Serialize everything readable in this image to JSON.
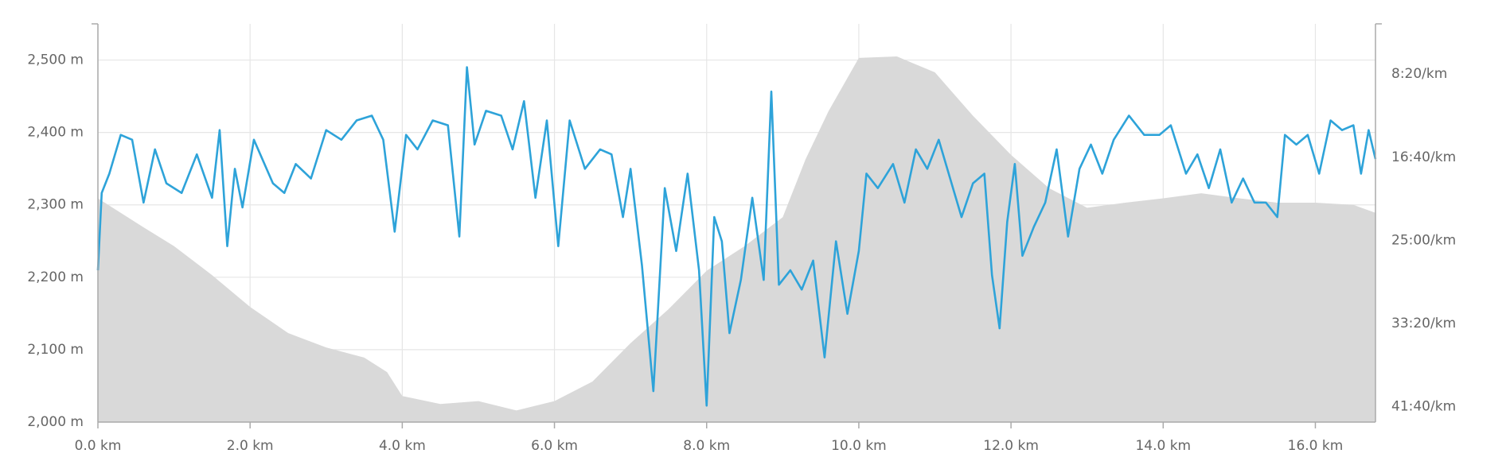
{
  "chart_data": {
    "type": "line",
    "xlim": [
      0,
      16.79
    ],
    "xticks": [
      {
        "value": 0,
        "label": "0.0 km"
      },
      {
        "value": 2,
        "label": "2.0 km"
      },
      {
        "value": 4,
        "label": "4.0 km"
      },
      {
        "value": 6,
        "label": "6.0 km"
      },
      {
        "value": 8,
        "label": "8.0 km"
      },
      {
        "value": 10,
        "label": "10.0 km"
      },
      {
        "value": 12,
        "label": "12.0 km"
      },
      {
        "value": 14,
        "label": "14.0 km"
      },
      {
        "value": 16,
        "label": "16.0 km"
      }
    ],
    "ylim": [
      2000,
      2550
    ],
    "yticks": [
      {
        "value": 2000,
        "label": "2,000 m"
      },
      {
        "value": 2100,
        "label": "2,100 m"
      },
      {
        "value": 2200,
        "label": "2,200 m"
      },
      {
        "value": 2300,
        "label": "2,300 m"
      },
      {
        "value": 2400,
        "label": "2,400 m"
      },
      {
        "value": 2500,
        "label": "2,500 m"
      }
    ],
    "y2lim": [
      2593,
      198
    ],
    "y2ticks": [
      {
        "value": 500,
        "label": "8:20/km"
      },
      {
        "value": 1000,
        "label": "16:40/km"
      },
      {
        "value": 1500,
        "label": "25:00/km"
      },
      {
        "value": 2000,
        "label": "33:20/km"
      },
      {
        "value": 2500,
        "label": "41:40/km"
      }
    ],
    "grid": true,
    "series": [
      {
        "type": "area",
        "color": "#d9d9d9",
        "x": [
          0,
          0.3,
          0.6,
          1.0,
          1.5,
          2.0,
          2.5,
          3.0,
          3.5,
          3.8,
          4.0,
          4.5,
          5.0,
          5.5,
          6.0,
          6.5,
          7.0,
          7.5,
          8.0,
          8.5,
          9.0,
          9.3,
          9.6,
          10.0,
          10.5,
          11.0,
          11.5,
          12.0,
          12.5,
          13.0,
          13.5,
          14.0,
          14.5,
          15.0,
          15.5,
          16.0,
          16.5,
          16.79
        ],
        "values": [
          2309,
          2289,
          2269,
          2243,
          2203,
          2159,
          2123,
          2103,
          2089,
          2069,
          2036,
          2025,
          2029,
          2016,
          2029,
          2056,
          2109,
          2156,
          2209,
          2243,
          2283,
          2363,
          2429,
          2503,
          2505,
          2483,
          2423,
          2369,
          2323,
          2296,
          2303,
          2309,
          2316,
          2309,
          2303,
          2303,
          2300,
          2289
        ]
      },
      {
        "type": "line",
        "axis": "y2",
        "color": "#2ea3d9",
        "x": [
          0,
          0.05,
          0.15,
          0.3,
          0.45,
          0.6,
          0.75,
          0.9,
          1.1,
          1.3,
          1.5,
          1.6,
          1.7,
          1.8,
          1.9,
          2.05,
          2.3,
          2.45,
          2.6,
          2.8,
          3.0,
          3.2,
          3.4,
          3.6,
          3.75,
          3.9,
          4.05,
          4.2,
          4.4,
          4.6,
          4.75,
          4.85,
          4.95,
          5.1,
          5.3,
          5.45,
          5.6,
          5.75,
          5.9,
          6.05,
          6.2,
          6.4,
          6.6,
          6.75,
          6.9,
          7.0,
          7.15,
          7.3,
          7.45,
          7.6,
          7.75,
          7.9,
          8.0,
          8.1,
          8.2,
          8.3,
          8.45,
          8.6,
          8.75,
          8.85,
          8.95,
          9.1,
          9.25,
          9.4,
          9.55,
          9.7,
          9.85,
          10.0,
          10.1,
          10.25,
          10.45,
          10.6,
          10.75,
          10.9,
          11.05,
          11.2,
          11.35,
          11.5,
          11.65,
          11.75,
          11.85,
          11.95,
          12.05,
          12.15,
          12.3,
          12.45,
          12.6,
          12.75,
          12.9,
          13.05,
          13.2,
          13.35,
          13.55,
          13.75,
          13.95,
          14.1,
          14.3,
          14.45,
          14.6,
          14.75,
          14.9,
          15.05,
          15.2,
          15.35,
          15.5,
          15.6,
          15.75,
          15.9,
          16.05,
          16.2,
          16.35,
          16.5,
          16.6,
          16.7,
          16.79
        ],
        "values": [
          1680,
          1215,
          1099,
          866,
          895,
          1273,
          953,
          1157,
          1215,
          983,
          1244,
          837,
          1535,
          1070,
          1302,
          895,
          1157,
          1215,
          1041,
          1128,
          837,
          895,
          779,
          750,
          895,
          1448,
          866,
          953,
          779,
          808,
          1477,
          459,
          924,
          721,
          750,
          953,
          663,
          1244,
          779,
          1535,
          779,
          1070,
          953,
          983,
          1360,
          1070,
          1651,
          2407,
          1186,
          1564,
          1099,
          1680,
          2494,
          1360,
          1506,
          2058,
          1738,
          1244,
          1738,
          605,
          1767,
          1680,
          1796,
          1622,
          2204,
          1506,
          1942,
          1564,
          1099,
          1186,
          1041,
          1273,
          953,
          1070,
          895,
          1128,
          1360,
          1157,
          1099,
          1709,
          2029,
          1390,
          1041,
          1593,
          1419,
          1273,
          953,
          1477,
          1070,
          924,
          1099,
          895,
          750,
          866,
          866,
          808,
          1099,
          983,
          1186,
          953,
          1273,
          1128,
          1273,
          1273,
          1360,
          866,
          924,
          866,
          1099,
          779,
          837,
          808,
          1099,
          837,
          1011
        ]
      }
    ]
  }
}
